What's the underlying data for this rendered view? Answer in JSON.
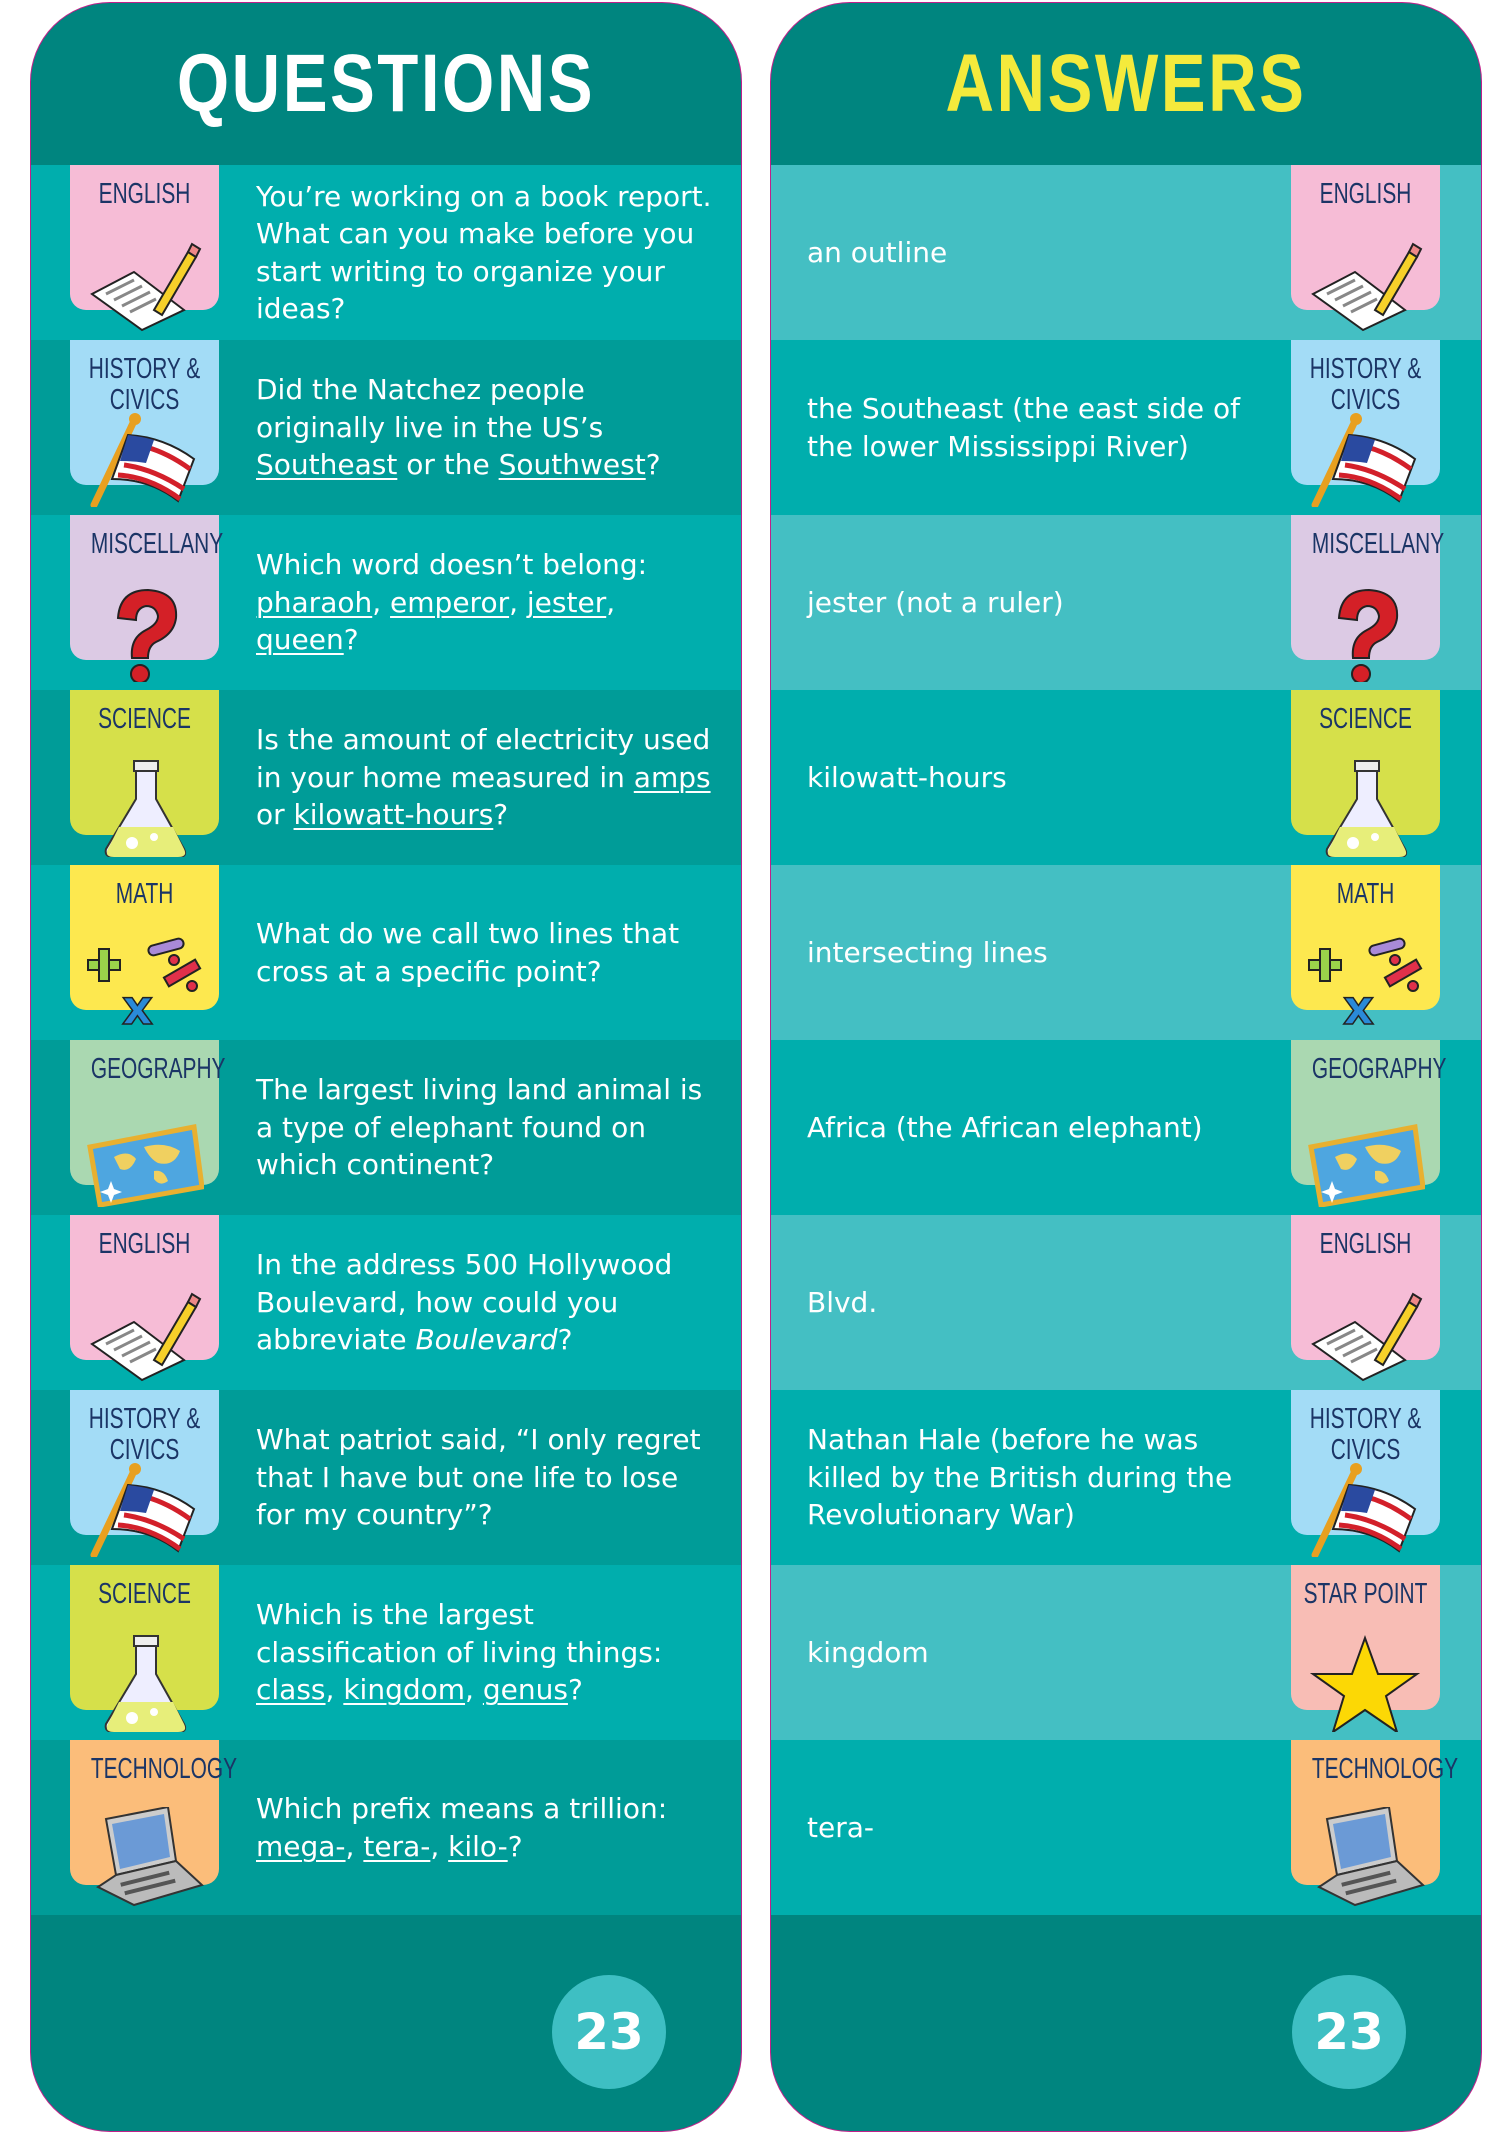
{
  "questions": {
    "title": "QUESTIONS",
    "page_number": "23",
    "rows": [
      {
        "category": "ENGLISH",
        "icon": "paper-pencil-icon",
        "color": "#f6bcd6",
        "text": [
          {
            "t": "You’re working on a book report. What can you make before you start writing to organize your ideas?"
          }
        ]
      },
      {
        "category": "HISTORY & CIVICS",
        "icon": "american-flag-icon",
        "color": "#a3dcf6",
        "text": [
          {
            "t": "Did the Natchez people originally live in the US’s "
          },
          {
            "t": "Southeast",
            "u": true
          },
          {
            "t": " or the "
          },
          {
            "t": "Southwest",
            "u": true
          },
          {
            "t": "?"
          }
        ]
      },
      {
        "category": "MISCELLANY",
        "icon": "question-mark-icon",
        "color": "#dccae4",
        "text": [
          {
            "t": "Which word doesn’t belong: "
          },
          {
            "t": "pharaoh",
            "u": true
          },
          {
            "t": ", "
          },
          {
            "t": "emperor",
            "u": true
          },
          {
            "t": ", "
          },
          {
            "t": "jester",
            "u": true
          },
          {
            "t": ", "
          },
          {
            "t": "queen",
            "u": true
          },
          {
            "t": "?"
          }
        ]
      },
      {
        "category": "SCIENCE",
        "icon": "flask-icon",
        "color": "#d6e04a",
        "text": [
          {
            "t": "Is the amount of electricity used in your home measured in "
          },
          {
            "t": "amps",
            "u": true
          },
          {
            "t": " or "
          },
          {
            "t": "kilowatt-hours",
            "u": true
          },
          {
            "t": "?"
          }
        ]
      },
      {
        "category": "MATH",
        "icon": "math-symbols-icon",
        "color": "#fde84f",
        "text": [
          {
            "t": "What do we call two lines that cross at a specific point?"
          }
        ]
      },
      {
        "category": "GEOGRAPHY",
        "icon": "world-map-icon",
        "color": "#aad8b1",
        "text": [
          {
            "t": "The largest living land animal is a type of elephant found on which continent?"
          }
        ]
      },
      {
        "category": "ENGLISH",
        "icon": "paper-pencil-icon",
        "color": "#f6bcd6",
        "text": [
          {
            "t": "In the address 500 Hollywood Boulevard, how could you abbreviate "
          },
          {
            "t": "Boulevard",
            "i": true
          },
          {
            "t": "?"
          }
        ]
      },
      {
        "category": "HISTORY & CIVICS",
        "icon": "american-flag-icon",
        "color": "#a3dcf6",
        "text": [
          {
            "t": "What patriot said, “I only regret that I have but one life to lose for my country”?"
          }
        ]
      },
      {
        "category": "SCIENCE",
        "icon": "flask-icon",
        "color": "#d6e04a",
        "text": [
          {
            "t": "Which is the largest classification of living things: "
          },
          {
            "t": "class",
            "u": true
          },
          {
            "t": ", "
          },
          {
            "t": "kingdom",
            "u": true
          },
          {
            "t": ", "
          },
          {
            "t": "genus",
            "u": true
          },
          {
            "t": "?"
          }
        ]
      },
      {
        "category": "TECHNOLOGY",
        "icon": "laptop-icon",
        "color": "#fbbd7a",
        "text": [
          {
            "t": "Which prefix means a trillion: "
          },
          {
            "t": "mega-",
            "u": true
          },
          {
            "t": ", "
          },
          {
            "t": "tera-",
            "u": true
          },
          {
            "t": ", "
          },
          {
            "t": "kilo-",
            "u": true
          },
          {
            "t": "?"
          }
        ]
      }
    ]
  },
  "answers": {
    "title": "ANSWERS",
    "page_number": "23",
    "rows": [
      {
        "category": "ENGLISH",
        "icon": "paper-pencil-icon",
        "color": "#f6bcd6",
        "text": "an outline"
      },
      {
        "category": "HISTORY & CIVICS",
        "icon": "american-flag-icon",
        "color": "#a3dcf6",
        "text": "the Southeast (the east side of the lower Mississippi River)"
      },
      {
        "category": "MISCELLANY",
        "icon": "question-mark-icon",
        "color": "#dccae4",
        "text": "jester (not a ruler)"
      },
      {
        "category": "SCIENCE",
        "icon": "flask-icon",
        "color": "#d6e04a",
        "text": "kilowatt-hours"
      },
      {
        "category": "MATH",
        "icon": "math-symbols-icon",
        "color": "#fde84f",
        "text": "intersecting lines"
      },
      {
        "category": "GEOGRAPHY",
        "icon": "world-map-icon",
        "color": "#aad8b1",
        "text": "Africa (the African elephant)"
      },
      {
        "category": "ENGLISH",
        "icon": "paper-pencil-icon",
        "color": "#f6bcd6",
        "text": "Blvd."
      },
      {
        "category": "HISTORY & CIVICS",
        "icon": "american-flag-icon",
        "color": "#a3dcf6",
        "text": "Nathan Hale (before he was killed by the British during the Revolutionary War)"
      },
      {
        "category": "STAR POINT",
        "icon": "star-icon",
        "color": "#f8bdb5",
        "text": "kingdom"
      },
      {
        "category": "TECHNOLOGY",
        "icon": "laptop-icon",
        "color": "#fbbd7a",
        "text": "tera-"
      }
    ]
  }
}
